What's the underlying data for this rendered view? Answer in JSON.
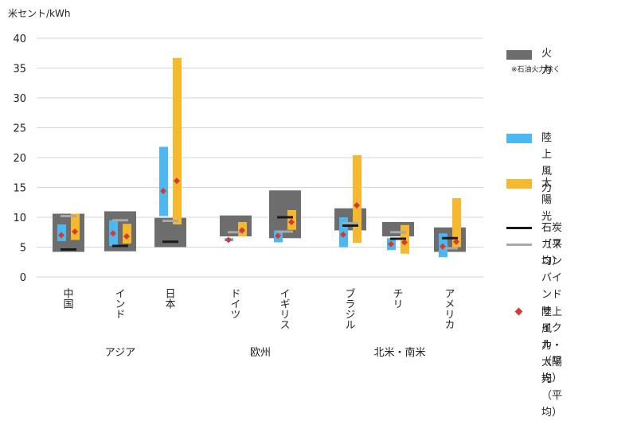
{
  "chart_data": {
    "type": "bar",
    "ylabel": "米セント/kWh",
    "ylim": [
      0,
      40
    ],
    "yticks": [
      0,
      5,
      10,
      15,
      20,
      25,
      30,
      35,
      40
    ],
    "grid": true,
    "legend_position": "right",
    "categories": [
      "中国",
      "インド",
      "日本",
      "ドイツ",
      "イギリス",
      "ブラジル",
      "チリ",
      "アメリカ"
    ],
    "groups": [
      {
        "label": "アジア",
        "categories": [
          "中国",
          "インド",
          "日本"
        ]
      },
      {
        "label": "欧州",
        "categories": [
          "ドイツ",
          "イギリス"
        ]
      },
      {
        "label": "北米・南米",
        "categories": [
          "ブラジル",
          "チリ",
          "アメリカ"
        ]
      }
    ],
    "series": [
      {
        "name": "火力",
        "kind": "range",
        "color": "#6d6d6d",
        "ranges": [
          [
            4.2,
            10.6
          ],
          [
            4.3,
            11.0
          ],
          [
            5.0,
            9.9
          ],
          [
            6.8,
            10.3
          ],
          [
            6.5,
            14.5
          ],
          [
            7.8,
            11.5
          ],
          [
            6.8,
            9.2
          ],
          [
            4.2,
            8.3
          ]
        ]
      },
      {
        "name": "陸上風力",
        "kind": "range",
        "color": "#4db8ef",
        "ranges": [
          [
            6.0,
            8.8
          ],
          [
            5.2,
            9.5
          ],
          [
            10.2,
            21.8
          ],
          [
            6.0,
            6.5
          ],
          [
            5.8,
            7.8
          ],
          [
            5.0,
            10.0
          ],
          [
            4.5,
            6.5
          ],
          [
            3.3,
            7.3
          ]
        ]
      },
      {
        "name": "太陽光",
        "kind": "range",
        "color": "#f5b82e",
        "ranges": [
          [
            6.2,
            10.6
          ],
          [
            5.6,
            8.9
          ],
          [
            8.8,
            36.7
          ],
          [
            6.8,
            9.2
          ],
          [
            7.9,
            11.2
          ],
          [
            5.7,
            20.4
          ],
          [
            3.9,
            8.7
          ],
          [
            5.0,
            13.2
          ]
        ]
      },
      {
        "name": "石炭（平均）",
        "kind": "marker",
        "color": "#1a1a1a",
        "values": [
          4.6,
          5.2,
          5.9,
          null,
          10.0,
          8.6,
          6.4,
          6.5
        ]
      },
      {
        "name": "ガスコンバインド\nサイクル（平均）",
        "kind": "marker",
        "color": "#a9a9a9",
        "values": [
          10.2,
          9.5,
          9.4,
          7.5,
          7.6,
          9.0,
          7.5,
          4.8
        ]
      },
      {
        "name": "陸上風力・太陽光\n（平均）",
        "kind": "point",
        "color": "#d43a2e",
        "wind_values": [
          7.0,
          7.3,
          14.4,
          6.2,
          6.9,
          7.1,
          5.5,
          5.1
        ],
        "solar_values": [
          7.6,
          6.8,
          16.1,
          7.8,
          9.2,
          12.0,
          5.8,
          5.9
        ]
      }
    ],
    "legend_note": "※石油火力除く"
  }
}
